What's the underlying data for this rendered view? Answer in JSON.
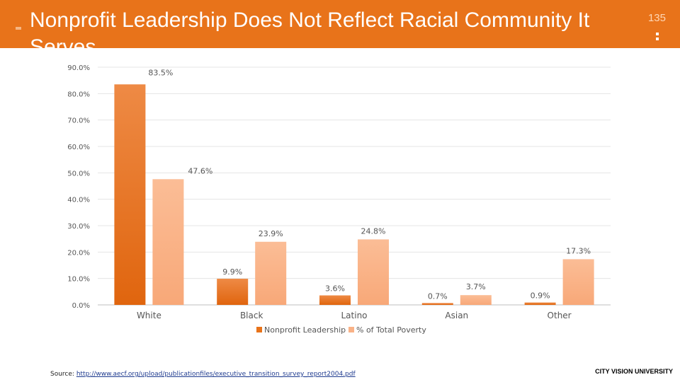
{
  "slide": {
    "title": "Nonprofit Leadership Does Not Reflect Racial Community It Serves",
    "number": "135",
    "source_label": "Source:",
    "source_url": "http://www.aecf.org/upload/publicationfiles/executive_transition_survey_report2004.pdf",
    "brand": "CITY VISION UNIVERSITY"
  },
  "colors": {
    "header": "#e8731a",
    "series1": "#e8731a",
    "series2": "#f9b287"
  },
  "chart_data": {
    "type": "bar",
    "title": "",
    "xlabel": "",
    "ylabel": "",
    "categories": [
      "White",
      "Black",
      "Latino",
      "Asian",
      "Other"
    ],
    "series": [
      {
        "name": "Nonprofit Leadership",
        "values": [
          83.5,
          9.9,
          3.6,
          0.7,
          0.9
        ],
        "labels": [
          "83.5%",
          "9.9%",
          "3.6%",
          "0.7%",
          "0.9%"
        ]
      },
      {
        "name": "% of Total Poverty",
        "values": [
          47.6,
          23.9,
          24.8,
          3.7,
          17.3
        ],
        "labels": [
          "47.6%",
          "23.9%",
          "24.8%",
          "3.7%",
          "17.3%"
        ]
      }
    ],
    "ylim": [
      0,
      90
    ],
    "yticks": [
      0,
      10,
      20,
      30,
      40,
      50,
      60,
      70,
      80,
      90
    ],
    "ytick_labels": [
      "0.0%",
      "10.0%",
      "20.0%",
      "30.0%",
      "40.0%",
      "50.0%",
      "60.0%",
      "70.0%",
      "80.0%",
      "90.0%"
    ],
    "grid": true,
    "legend_position": "bottom"
  }
}
